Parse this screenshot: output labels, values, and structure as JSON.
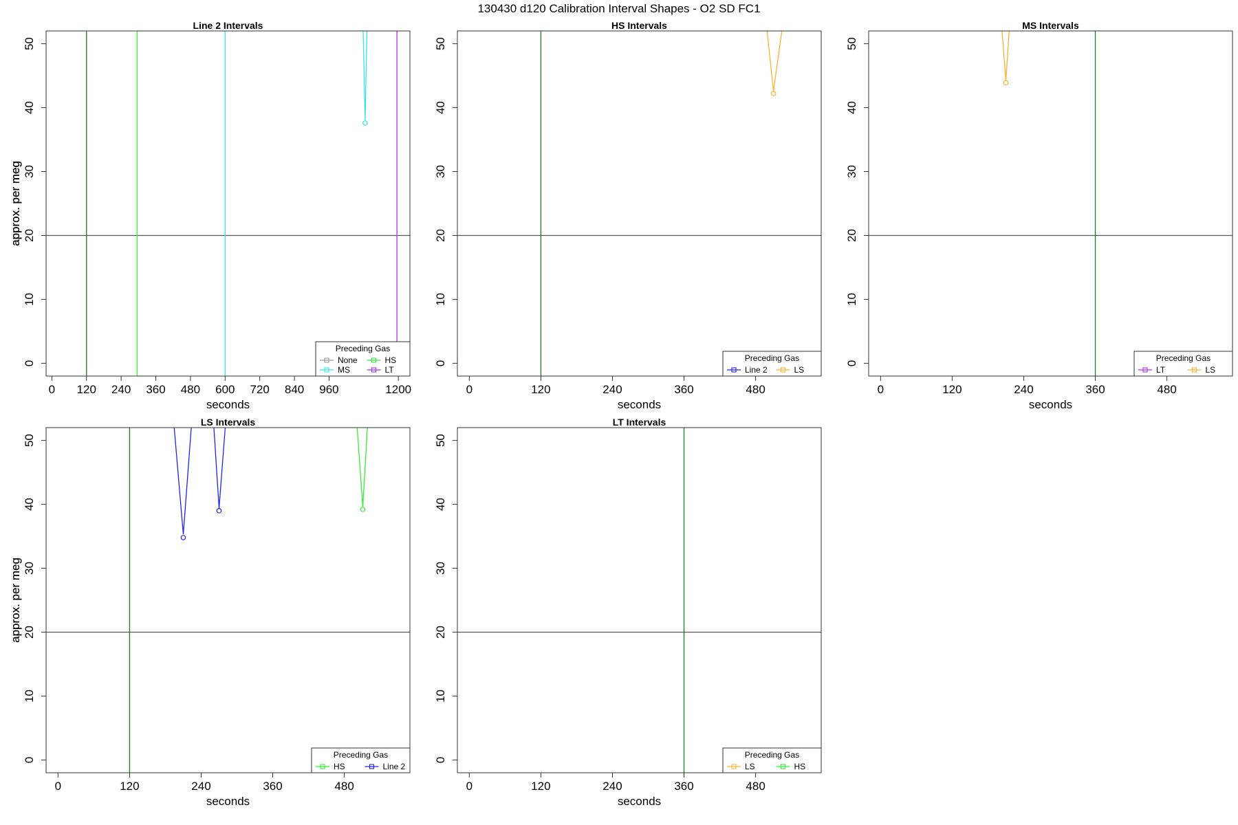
{
  "suptitle": "130430   d120   Calibration Interval Shapes - O2 SD FC1",
  "colors": {
    "None": "#9a9a9a",
    "MS": "#33e5e5",
    "HS": "#33ee33",
    "LT": "#aa33ee",
    "Line 2": "#2222ee",
    "LS": "#ffb030",
    "refline": "#1f7a1f",
    "hline": "#555555"
  },
  "chart_data": [
    {
      "type": "line",
      "title": "Line 2 Intervals",
      "xlabel": "seconds",
      "ylabel": "approx. per meg",
      "xlim": [
        -20,
        1240
      ],
      "ylim": [
        -2,
        52
      ],
      "xticks": [
        0,
        120,
        240,
        360,
        480,
        600,
        720,
        840,
        960,
        1200
      ],
      "yticks": [
        0,
        10,
        20,
        30,
        40,
        50
      ],
      "hline": 20,
      "vlines": [
        {
          "x": 120,
          "color": "#1f7a1f"
        },
        {
          "x": 295,
          "color": "#33ee33"
        },
        {
          "x": 600,
          "color": "#33e5e5"
        },
        {
          "x": 1195,
          "color": "#aa33ee"
        }
      ],
      "series": [
        {
          "name": "MS",
          "color": "#33e5e5",
          "points": [
            [
              1077,
              54
            ],
            [
              1085,
              38
            ],
            [
              1092,
              54
            ]
          ],
          "marker": [
            1085,
            37.6
          ]
        }
      ],
      "legend": {
        "title": "Preceding Gas",
        "position": "bottom-right",
        "columns": 2,
        "entries": [
          {
            "label": "None",
            "color": "#9a9a9a"
          },
          {
            "label": "HS",
            "color": "#33ee33"
          },
          {
            "label": "MS",
            "color": "#33e5e5"
          },
          {
            "label": "LT",
            "color": "#aa33ee"
          }
        ]
      }
    },
    {
      "type": "line",
      "title": "HS Intervals",
      "xlabel": "seconds",
      "ylabel": "approx. per meg",
      "xlim": [
        -20,
        590
      ],
      "ylim": [
        -2,
        52
      ],
      "xticks": [
        0,
        120,
        240,
        360,
        480
      ],
      "yticks": [
        0,
        10,
        20,
        30,
        40,
        50
      ],
      "hline": 20,
      "vlines": [
        {
          "x": 120,
          "color": "#1f7a1f"
        }
      ],
      "series": [
        {
          "name": "LS",
          "color": "#ffb030",
          "points": [
            [
              497,
              54
            ],
            [
              510,
              42.6
            ],
            [
              527,
              54
            ]
          ],
          "marker": [
            510,
            42.2
          ]
        }
      ],
      "legend": {
        "title": "Preceding Gas",
        "position": "bottom-right",
        "columns": 2,
        "entries": [
          {
            "label": "Line 2",
            "color": "#2222ee"
          },
          {
            "label": "LS",
            "color": "#ffb030"
          }
        ]
      }
    },
    {
      "type": "line",
      "title": "MS Intervals",
      "xlabel": "seconds",
      "ylabel": "approx. per meg",
      "xlim": [
        -20,
        590
      ],
      "ylim": [
        -2,
        52
      ],
      "xticks": [
        0,
        120,
        240,
        360,
        480
      ],
      "yticks": [
        0,
        10,
        20,
        30,
        40,
        50
      ],
      "hline": 20,
      "vlines": [
        {
          "x": 360,
          "color": "#1f7a1f"
        }
      ],
      "series": [
        {
          "name": "LS",
          "color": "#ffb030",
          "points": [
            [
              202,
              54
            ],
            [
              210,
              44.2
            ],
            [
              217,
              54
            ]
          ],
          "marker": [
            210,
            43.9
          ]
        }
      ],
      "legend": {
        "title": "Preceding Gas",
        "position": "bottom-right",
        "columns": 2,
        "entries": [
          {
            "label": "LT",
            "color": "#aa33ee"
          },
          {
            "label": "LS",
            "color": "#ffb030"
          }
        ]
      }
    },
    {
      "type": "line",
      "title": "LS Intervals",
      "xlabel": "seconds",
      "ylabel": "approx. per meg",
      "xlim": [
        -20,
        590
      ],
      "ylim": [
        -2,
        52
      ],
      "xticks": [
        0,
        120,
        240,
        360,
        480
      ],
      "yticks": [
        0,
        10,
        20,
        30,
        40,
        50
      ],
      "hline": 20,
      "vlines": [
        {
          "x": 120,
          "color": "#1f7a1f"
        }
      ],
      "series": [
        {
          "name": "Line 2",
          "color": "#2222ee",
          "points": [
            [
              193,
              54
            ],
            [
              210,
              35.3
            ],
            [
              225,
              54
            ]
          ],
          "marker": [
            210,
            34.8
          ]
        },
        {
          "name": "Line 2",
          "color": "#2222ee",
          "points": [
            [
              260,
              54
            ],
            [
              270,
              39.4
            ],
            [
              282,
              54
            ]
          ],
          "marker": [
            270,
            39.0
          ]
        },
        {
          "name": "HS",
          "color": "#33ee33",
          "points": [
            [
              500,
              54
            ],
            [
              511,
              39.6
            ],
            [
              520,
              54
            ]
          ],
          "marker": [
            511,
            39.2
          ]
        }
      ],
      "legend": {
        "title": "Preceding Gas",
        "position": "bottom-right",
        "columns": 2,
        "entries": [
          {
            "label": "HS",
            "color": "#33ee33"
          },
          {
            "label": "Line 2",
            "color": "#2222ee"
          }
        ]
      }
    },
    {
      "type": "line",
      "title": "LT Intervals",
      "xlabel": "seconds",
      "ylabel": "approx. per meg",
      "xlim": [
        -20,
        590
      ],
      "ylim": [
        -2,
        52
      ],
      "xticks": [
        0,
        120,
        240,
        360,
        480
      ],
      "yticks": [
        0,
        10,
        20,
        30,
        40,
        50
      ],
      "hline": 20,
      "vlines": [
        {
          "x": 360,
          "color": "#1f7a1f"
        }
      ],
      "series": [],
      "legend": {
        "title": "Preceding Gas",
        "position": "bottom-right",
        "columns": 2,
        "entries": [
          {
            "label": "LS",
            "color": "#ffb030"
          },
          {
            "label": "HS",
            "color": "#33ee33"
          }
        ]
      }
    }
  ]
}
